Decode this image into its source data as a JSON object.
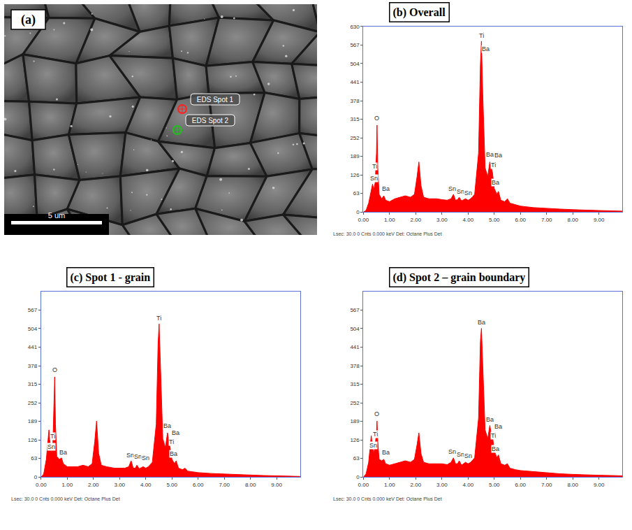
{
  "chart_data": [
    {
      "type": "area",
      "title": "(b) Overall",
      "color": "#ff0000",
      "grid": false,
      "x": [
        0.0,
        0.1,
        0.2,
        0.3,
        0.35,
        0.4,
        0.45,
        0.5,
        0.52,
        0.55,
        0.6,
        0.7,
        0.78,
        0.85,
        1.0,
        1.2,
        1.4,
        1.6,
        1.8,
        1.95,
        2.05,
        2.12,
        2.2,
        2.3,
        2.5,
        2.8,
        3.0,
        3.2,
        3.35,
        3.44,
        3.52,
        3.6,
        3.66,
        3.75,
        3.9,
        4.0,
        4.1,
        4.25,
        4.4,
        4.47,
        4.51,
        4.56,
        4.65,
        4.75,
        4.83,
        4.88,
        4.93,
        5.0,
        5.1,
        5.16,
        5.25,
        5.4,
        5.5,
        5.6,
        5.8,
        6.0,
        6.5,
        7.0,
        7.5,
        8.0,
        8.5,
        9.0,
        9.5,
        9.9
      ],
      "values": [
        0,
        5,
        30,
        80,
        95,
        75,
        100,
        200,
        295,
        150,
        60,
        45,
        55,
        40,
        35,
        45,
        50,
        55,
        50,
        60,
        120,
        170,
        90,
        50,
        45,
        45,
        42,
        40,
        45,
        60,
        40,
        42,
        50,
        38,
        45,
        40,
        45,
        60,
        200,
        500,
        580,
        400,
        150,
        120,
        170,
        150,
        135,
        80,
        60,
        70,
        40,
        35,
        45,
        30,
        25,
        20,
        15,
        12,
        10,
        8,
        6,
        5,
        4,
        3
      ],
      "xlim": [
        0,
        9.9
      ],
      "xticks": [
        {
          "value": 0,
          "label": "0.00"
        },
        {
          "value": 1,
          "label": "1.00"
        },
        {
          "value": 2,
          "label": "2.00"
        },
        {
          "value": 3,
          "label": "3.00"
        },
        {
          "value": 4,
          "label": "4.00"
        },
        {
          "value": 5,
          "label": "5.00"
        },
        {
          "value": 6,
          "label": "6.00"
        },
        {
          "value": 7,
          "label": "7.00"
        },
        {
          "value": 8,
          "label": "8.00"
        },
        {
          "value": 9,
          "label": "9.00"
        }
      ],
      "ylim": [
        0,
        630
      ],
      "yticks": [
        0,
        63,
        126,
        189,
        252,
        315,
        378,
        441,
        504,
        567,
        630
      ],
      "annotations": [
        {
          "text": "O",
          "x": 0.52,
          "y": 305
        },
        {
          "text": "Ti",
          "x": 0.42,
          "y": 140
        },
        {
          "text": "Sn",
          "x": 0.4,
          "y": 100
        },
        {
          "text": "Ba",
          "x": 0.85,
          "y": 65
        },
        {
          "text": "Sn",
          "x": 3.4,
          "y": 65
        },
        {
          "text": "Sn",
          "x": 3.7,
          "y": 55
        },
        {
          "text": "Sn",
          "x": 4.0,
          "y": 50
        },
        {
          "text": "Ti",
          "x": 4.51,
          "y": 585
        },
        {
          "text": "Ba",
          "x": 4.68,
          "y": 540
        },
        {
          "text": "Ba",
          "x": 4.83,
          "y": 180
        },
        {
          "text": "Ti",
          "x": 4.97,
          "y": 145
        },
        {
          "text": "Ba",
          "x": 5.15,
          "y": 178
        },
        {
          "text": "Ba",
          "x": 5.05,
          "y": 85
        }
      ],
      "footnote": "Lsec: 30.0 0 Cnts 0.000 keV Det: Octane Plus Det"
    },
    {
      "type": "area",
      "title": "(c) Spot 1 - grain",
      "color": "#ff0000",
      "grid": false,
      "x": [
        0.0,
        0.1,
        0.2,
        0.3,
        0.35,
        0.4,
        0.45,
        0.5,
        0.52,
        0.55,
        0.6,
        0.7,
        0.78,
        0.85,
        1.0,
        1.2,
        1.4,
        1.6,
        1.8,
        1.95,
        2.05,
        2.12,
        2.2,
        2.3,
        2.5,
        2.8,
        3.0,
        3.2,
        3.35,
        3.44,
        3.52,
        3.6,
        3.66,
        3.75,
        3.9,
        4.0,
        4.1,
        4.25,
        4.4,
        4.47,
        4.51,
        4.56,
        4.65,
        4.75,
        4.83,
        4.88,
        4.93,
        5.0,
        5.1,
        5.16,
        5.25,
        5.4,
        5.5,
        5.6,
        5.8,
        6.0,
        6.5,
        7.0,
        7.5,
        8.0,
        8.5,
        9.0,
        9.5,
        9.9
      ],
      "values": [
        0,
        10,
        60,
        160,
        110,
        80,
        110,
        250,
        340,
        180,
        70,
        60,
        65,
        45,
        35,
        35,
        35,
        40,
        35,
        45,
        120,
        190,
        80,
        40,
        35,
        30,
        30,
        30,
        35,
        55,
        30,
        30,
        40,
        28,
        35,
        30,
        35,
        50,
        180,
        450,
        520,
        380,
        130,
        100,
        150,
        120,
        100,
        60,
        45,
        55,
        30,
        25,
        30,
        20,
        18,
        15,
        12,
        10,
        8,
        6,
        5,
        4,
        3,
        2
      ],
      "xlim": [
        0,
        9.9
      ],
      "xticks": [
        {
          "value": 0,
          "label": "0.00"
        },
        {
          "value": 1,
          "label": "1.00"
        },
        {
          "value": 2,
          "label": "2.00"
        },
        {
          "value": 3,
          "label": "3.00"
        },
        {
          "value": 4,
          "label": "4.00"
        },
        {
          "value": 5,
          "label": "5.00"
        },
        {
          "value": 6,
          "label": "6.00"
        },
        {
          "value": 7,
          "label": "7.00"
        },
        {
          "value": 8,
          "label": "8.00"
        },
        {
          "value": 9,
          "label": "9.00"
        }
      ],
      "ylim": [
        0,
        630
      ],
      "yticks": [
        0,
        63,
        126,
        189,
        252,
        315,
        378,
        441,
        504,
        567
      ],
      "annotations": [
        {
          "text": "O",
          "x": 0.52,
          "y": 350
        },
        {
          "text": "Ti",
          "x": 0.45,
          "y": 125
        },
        {
          "text": "Sn",
          "x": 0.38,
          "y": 88
        },
        {
          "text": "Ba",
          "x": 0.85,
          "y": 70
        },
        {
          "text": "Sn",
          "x": 3.4,
          "y": 60
        },
        {
          "text": "Sn",
          "x": 3.7,
          "y": 55
        },
        {
          "text": "Sn",
          "x": 4.0,
          "y": 50
        },
        {
          "text": "Ti",
          "x": 4.51,
          "y": 525
        },
        {
          "text": "Ba",
          "x": 4.83,
          "y": 160
        },
        {
          "text": "Ba",
          "x": 5.15,
          "y": 135
        },
        {
          "text": "Ti",
          "x": 4.97,
          "y": 105
        },
        {
          "text": "Ba",
          "x": 5.05,
          "y": 65
        }
      ],
      "footnote": "Lsec: 30.0 0 Cnts 0.000 keV Det: Octane Plus Det"
    },
    {
      "type": "area",
      "title": "(d) Spot 2 – grain boundary",
      "color": "#ff0000",
      "grid": false,
      "x": [
        0.0,
        0.1,
        0.2,
        0.3,
        0.35,
        0.4,
        0.45,
        0.5,
        0.52,
        0.55,
        0.6,
        0.7,
        0.78,
        0.85,
        1.0,
        1.2,
        1.4,
        1.6,
        1.8,
        1.95,
        2.05,
        2.12,
        2.2,
        2.3,
        2.5,
        2.8,
        3.0,
        3.2,
        3.35,
        3.44,
        3.52,
        3.6,
        3.66,
        3.75,
        3.9,
        4.0,
        4.1,
        4.25,
        4.4,
        4.47,
        4.51,
        4.56,
        4.65,
        4.75,
        4.83,
        4.88,
        4.93,
        5.0,
        5.1,
        5.16,
        5.25,
        5.4,
        5.5,
        5.6,
        5.8,
        6.0,
        6.5,
        7.0,
        7.5,
        8.0,
        8.5,
        9.0,
        9.5,
        9.9
      ],
      "values": [
        0,
        10,
        50,
        140,
        100,
        80,
        110,
        150,
        190,
        120,
        60,
        55,
        60,
        45,
        40,
        45,
        50,
        55,
        50,
        60,
        110,
        150,
        80,
        50,
        45,
        45,
        45,
        42,
        50,
        65,
        45,
        45,
        55,
        40,
        50,
        45,
        50,
        65,
        200,
        460,
        505,
        380,
        160,
        130,
        175,
        150,
        140,
        90,
        65,
        75,
        45,
        40,
        45,
        30,
        25,
        22,
        18,
        14,
        11,
        9,
        7,
        6,
        5,
        4
      ],
      "xlim": [
        0,
        9.9
      ],
      "xticks": [
        {
          "value": 0,
          "label": "0.00"
        },
        {
          "value": 1,
          "label": "1.00"
        },
        {
          "value": 2,
          "label": "2.00"
        },
        {
          "value": 3,
          "label": "3.00"
        },
        {
          "value": 4,
          "label": "4.00"
        },
        {
          "value": 5,
          "label": "5.00"
        },
        {
          "value": 6,
          "label": "6.00"
        },
        {
          "value": 7,
          "label": "7.00"
        },
        {
          "value": 8,
          "label": "8.00"
        },
        {
          "value": 9,
          "label": "9.00"
        }
      ],
      "ylim": [
        0,
        630
      ],
      "yticks": [
        0,
        63,
        126,
        189,
        252,
        315,
        378,
        441,
        504,
        567
      ],
      "annotations": [
        {
          "text": "O",
          "x": 0.52,
          "y": 200
        },
        {
          "text": "Ti",
          "x": 0.45,
          "y": 130
        },
        {
          "text": "Sn",
          "x": 0.38,
          "y": 92
        },
        {
          "text": "Ba",
          "x": 0.85,
          "y": 70
        },
        {
          "text": "Sn",
          "x": 3.4,
          "y": 72
        },
        {
          "text": "Sn",
          "x": 3.7,
          "y": 62
        },
        {
          "text": "Sn",
          "x": 4.0,
          "y": 57
        },
        {
          "text": "Ba",
          "x": 4.51,
          "y": 510
        },
        {
          "text": "Ba",
          "x": 4.83,
          "y": 182
        },
        {
          "text": "Ba",
          "x": 5.15,
          "y": 158
        },
        {
          "text": "Ti",
          "x": 4.97,
          "y": 126
        },
        {
          "text": "Ba",
          "x": 5.05,
          "y": 82
        }
      ],
      "footnote": "Lsec: 30.0 0 Cnts 0.000 keV Det: Octane Plus Det"
    }
  ],
  "image_panel": {
    "label": "(a)",
    "scale_bar": "5 um",
    "spots": [
      {
        "label": "EDS Spot 1",
        "color": "#ff2020"
      },
      {
        "label": "EDS Spot 2",
        "color": "#20c020"
      }
    ]
  }
}
